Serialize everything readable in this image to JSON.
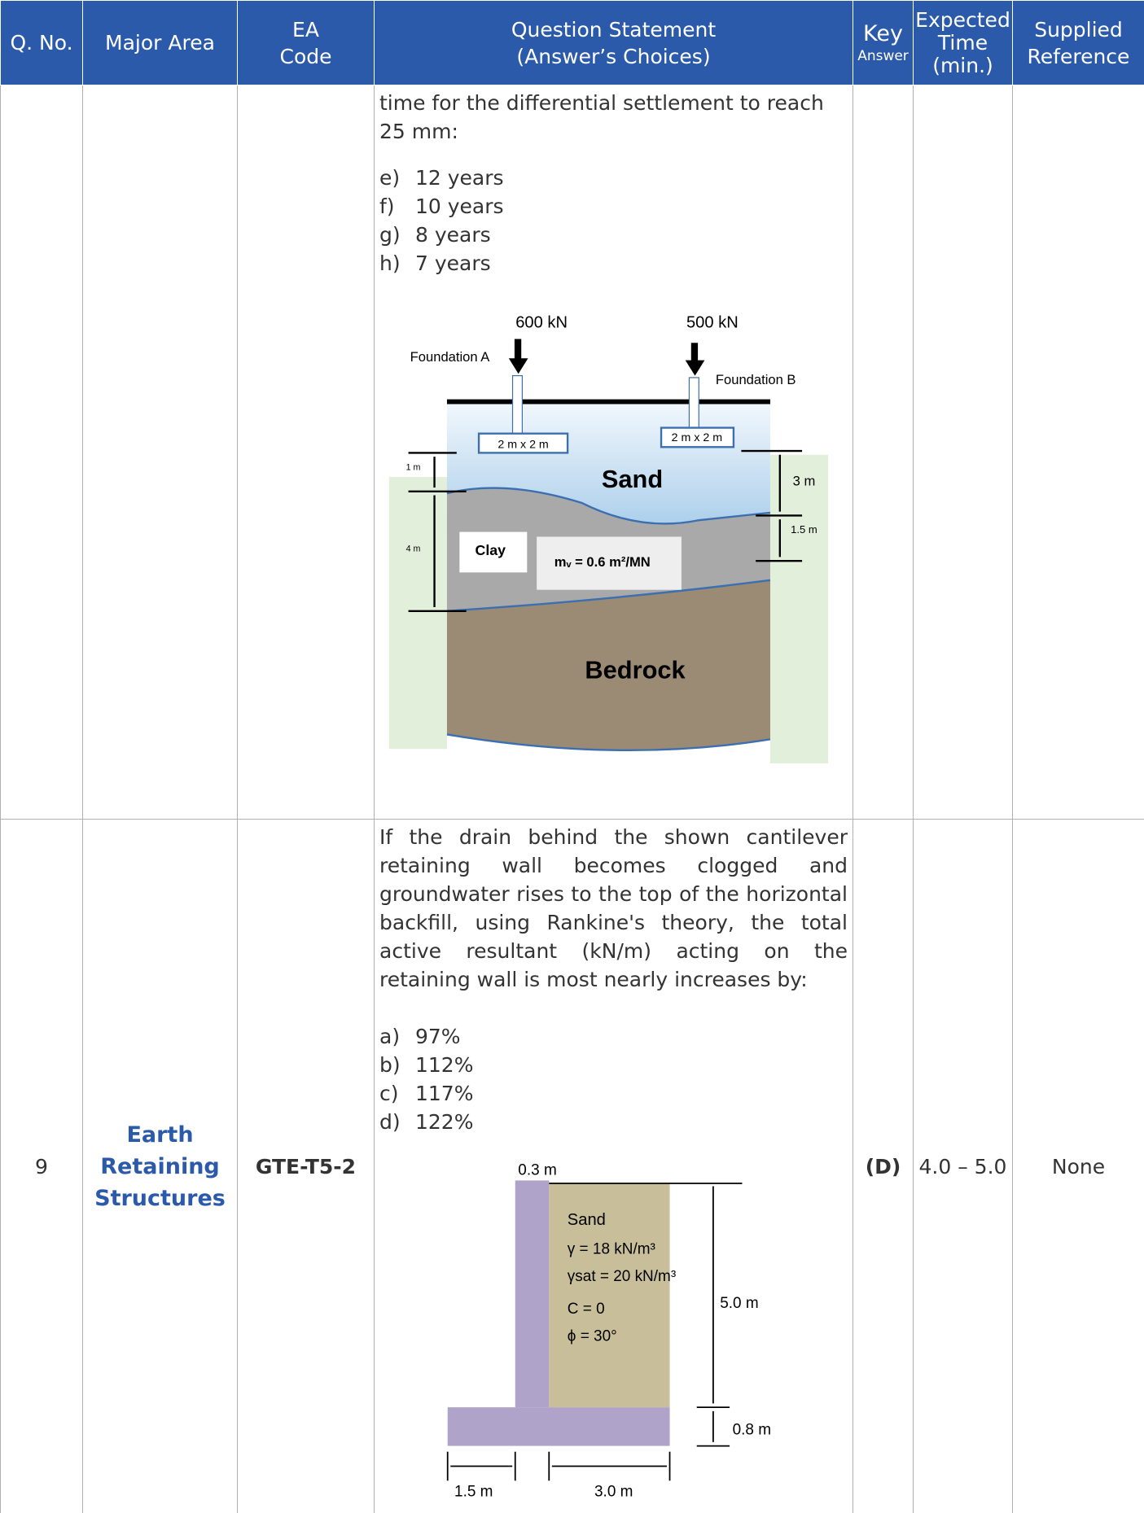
{
  "header": {
    "columns": [
      [
        "Q. No."
      ],
      [
        "Major Area"
      ],
      [
        "EA",
        "Code"
      ],
      [
        "Question Statement",
        "(Answer’s Choices)"
      ],
      [
        "Key",
        "Answer"
      ],
      [
        "Expected",
        "Time",
        "(min.)"
      ],
      [
        "Supplied",
        "Reference"
      ]
    ]
  },
  "rows": [
    {
      "question": "time for the differential settlement to reach 25 mm:",
      "choices": [
        {
          "letter": "e)",
          "text": "12 years"
        },
        {
          "letter": "f)",
          "text": "10 years"
        },
        {
          "letter": "g)",
          "text": "8 years"
        },
        {
          "letter": "h)",
          "text": "7 years"
        }
      ],
      "figure": {
        "load_a": "600 kN",
        "load_b": "500 kN",
        "foundation_a": "Foundation A",
        "foundation_b": "Foundation B",
        "size_a": "2 m x 2 m",
        "size_b": "2 m x 2 m",
        "sand": "Sand",
        "clay": "Clay",
        "mv": "mᵥ = 0.6 m²/MN",
        "bedrock": "Bedrock",
        "dim_1": "1 m",
        "dim_4": "4 m",
        "dim_3": "3 m",
        "dim_15": "1.5 m"
      }
    },
    {
      "number": "9",
      "area": "Earth Retaining Structures",
      "code": "GTE-T5-2",
      "question": "If the drain behind the shown cantilever retaining wall becomes clogged and groundwater rises to the top of the horizontal backfill, using Rankine's theory, the total active resultant (kN/m) acting on the retaining wall is most nearly increases by:",
      "choices": [
        {
          "letter": "a)",
          "text": "97%"
        },
        {
          "letter": "b)",
          "text": "112%"
        },
        {
          "letter": "c)",
          "text": "117%"
        },
        {
          "letter": "d)",
          "text": "122%"
        }
      ],
      "key": "(D)",
      "time": "4.0 – 5.0",
      "reference": "None",
      "figure": {
        "stem": "0.3 m",
        "soil": "Sand",
        "gamma": "γ = 18 kN/m³",
        "gamma_sat": "γsat = 20 kN/m³",
        "c": "C = 0",
        "phi": "ϕ = 30°",
        "height": "5.0 m",
        "base_thk": "0.8 m",
        "toe": "1.5 m",
        "heel": "3.0 m"
      }
    }
  ]
}
